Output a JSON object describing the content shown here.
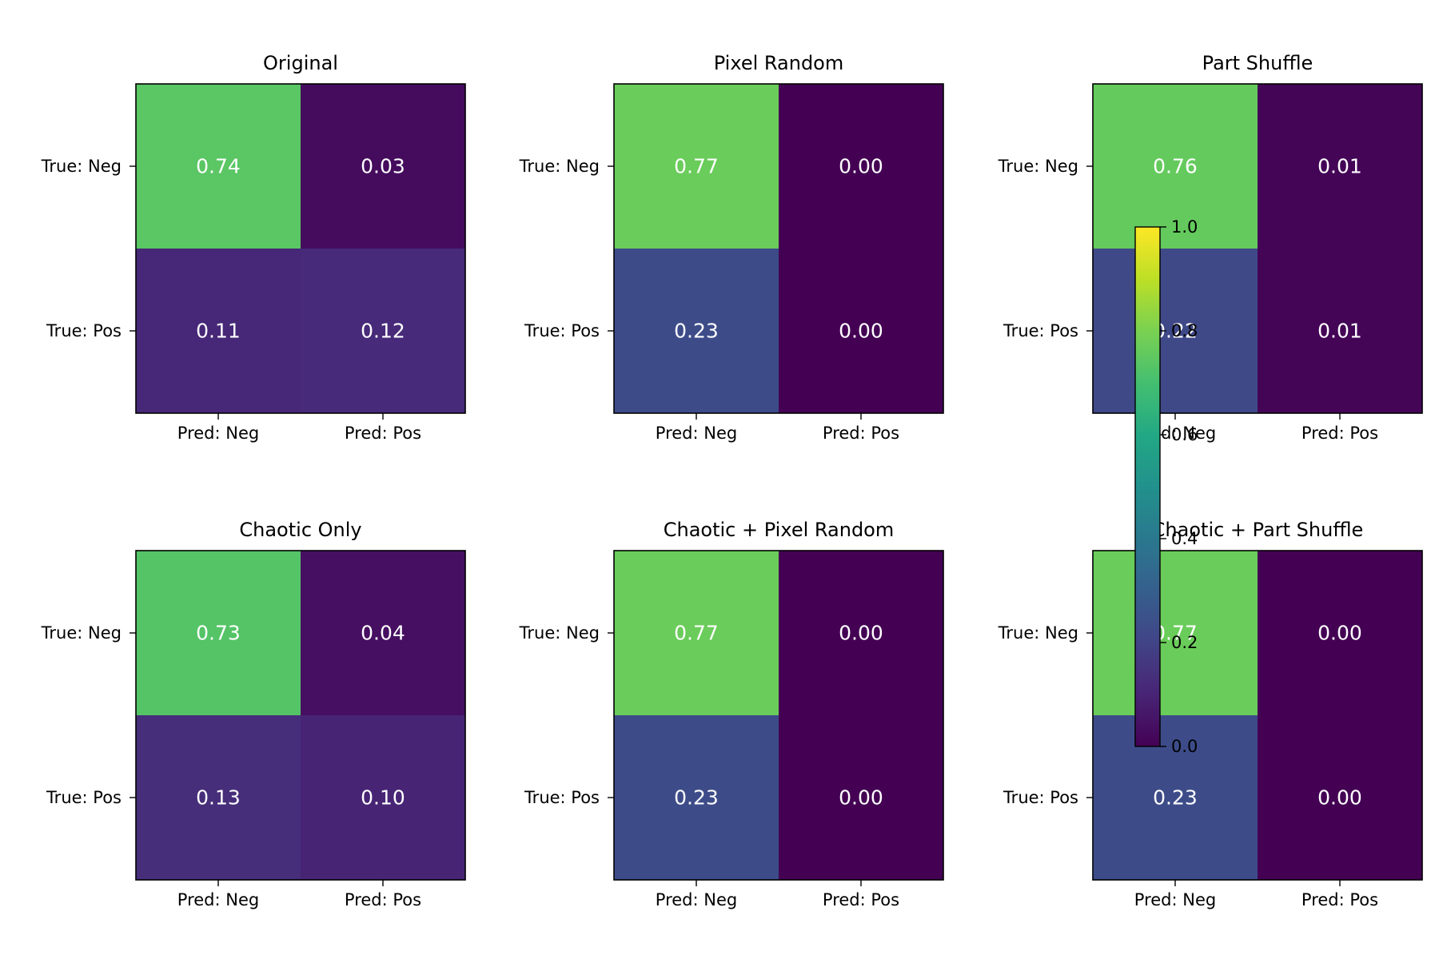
{
  "chart_data": [
    {
      "type": "heatmap",
      "title": "Original",
      "x_categories": [
        "Pred: Neg",
        "Pred: Pos"
      ],
      "y_categories": [
        "True: Neg",
        "True: Pos"
      ],
      "values": [
        [
          0.74,
          0.03
        ],
        [
          0.11,
          0.12
        ]
      ],
      "cell_labels": [
        [
          "0.74",
          "0.03"
        ],
        [
          "0.11",
          "0.12"
        ]
      ],
      "colorscale": "viridis",
      "zlim": [
        0,
        1
      ]
    },
    {
      "type": "heatmap",
      "title": "Pixel Random",
      "x_categories": [
        "Pred: Neg",
        "Pred: Pos"
      ],
      "y_categories": [
        "True: Neg",
        "True: Pos"
      ],
      "values": [
        [
          0.77,
          0.0
        ],
        [
          0.23,
          0.0
        ]
      ],
      "cell_labels": [
        [
          "0.77",
          "0.00"
        ],
        [
          "0.23",
          "0.00"
        ]
      ],
      "colorscale": "viridis",
      "zlim": [
        0,
        1
      ]
    },
    {
      "type": "heatmap",
      "title": "Part Shuffle",
      "x_categories": [
        "Pred: Neg",
        "Pred: Pos"
      ],
      "y_categories": [
        "True: Neg",
        "True: Pos"
      ],
      "values": [
        [
          0.76,
          0.01
        ],
        [
          0.22,
          0.01
        ]
      ],
      "cell_labels": [
        [
          "0.76",
          "0.01"
        ],
        [
          "0.22",
          "0.01"
        ]
      ],
      "colorscale": "viridis",
      "zlim": [
        0,
        1
      ]
    },
    {
      "type": "heatmap",
      "title": "Chaotic Only",
      "x_categories": [
        "Pred: Neg",
        "Pred: Pos"
      ],
      "y_categories": [
        "True: Neg",
        "True: Pos"
      ],
      "values": [
        [
          0.73,
          0.04
        ],
        [
          0.13,
          0.1
        ]
      ],
      "cell_labels": [
        [
          "0.73",
          "0.04"
        ],
        [
          "0.13",
          "0.10"
        ]
      ],
      "colorscale": "viridis",
      "zlim": [
        0,
        1
      ]
    },
    {
      "type": "heatmap",
      "title": "Chaotic + Pixel Random",
      "x_categories": [
        "Pred: Neg",
        "Pred: Pos"
      ],
      "y_categories": [
        "True: Neg",
        "True: Pos"
      ],
      "values": [
        [
          0.77,
          0.0
        ],
        [
          0.23,
          0.0
        ]
      ],
      "cell_labels": [
        [
          "0.77",
          "0.00"
        ],
        [
          "0.23",
          "0.00"
        ]
      ],
      "colorscale": "viridis",
      "zlim": [
        0,
        1
      ]
    },
    {
      "type": "heatmap",
      "title": "Chaotic + Part Shuffle",
      "x_categories": [
        "Pred: Neg",
        "Pred: Pos"
      ],
      "y_categories": [
        "True: Neg",
        "True: Pos"
      ],
      "values": [
        [
          0.77,
          0.0
        ],
        [
          0.23,
          0.0
        ]
      ],
      "cell_labels": [
        [
          "0.77",
          "0.00"
        ],
        [
          "0.23",
          "0.00"
        ]
      ],
      "colorscale": "viridis",
      "zlim": [
        0,
        1
      ]
    }
  ],
  "colorbar": {
    "ticks": [
      0.0,
      0.2,
      0.4,
      0.6,
      0.8,
      1.0
    ],
    "tick_labels": [
      "0.0",
      "0.2",
      "0.4",
      "0.6",
      "0.8",
      "1.0"
    ],
    "range": [
      0,
      1
    ],
    "colorscale": "viridis"
  }
}
